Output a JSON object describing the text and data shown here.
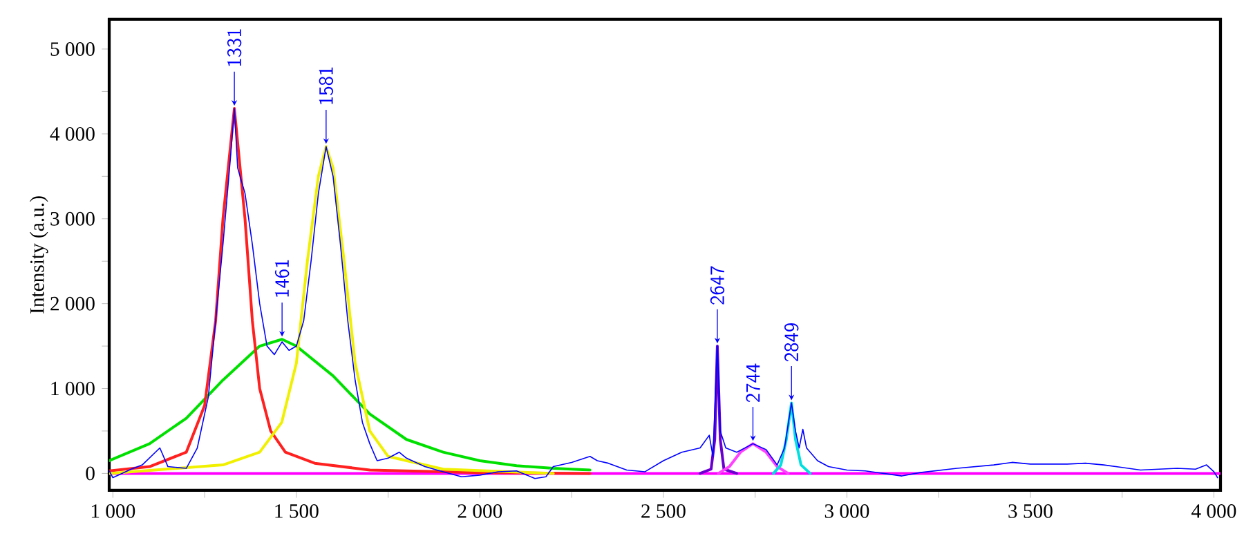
{
  "chart_data": {
    "type": "line",
    "ylabel": "Intensity (a.u.)",
    "xlim": [
      990,
      4018
    ],
    "ylim": [
      -200,
      5350
    ],
    "xticks": [
      {
        "value": 1000,
        "label": "1 000"
      },
      {
        "value": 1250,
        "label": null
      },
      {
        "value": 1500,
        "label": "1 500"
      },
      {
        "value": 1750,
        "label": null
      },
      {
        "value": 2000,
        "label": "2 000"
      },
      {
        "value": 2250,
        "label": null
      },
      {
        "value": 2500,
        "label": "2 500"
      },
      {
        "value": 2750,
        "label": null
      },
      {
        "value": 3000,
        "label": "3 000"
      },
      {
        "value": 3250,
        "label": null
      },
      {
        "value": 3500,
        "label": "3 500"
      },
      {
        "value": 3750,
        "label": null
      },
      {
        "value": 4000,
        "label": "4 000"
      }
    ],
    "yticks": [
      0,
      {
        "value": 500,
        "label": null
      },
      {
        "value": 1000,
        "label": "1 000"
      },
      {
        "value": 1500,
        "label": null
      },
      {
        "value": 2000,
        "label": "2 000"
      },
      {
        "value": 2500,
        "label": null
      },
      {
        "value": 3000,
        "label": "3 000"
      },
      {
        "value": 3500,
        "label": null
      },
      {
        "value": 4000,
        "label": "4 000"
      },
      {
        "value": 4500,
        "label": null
      },
      {
        "value": 5000,
        "label": "5 000"
      }
    ],
    "grid": false,
    "marker": "none",
    "line_style": "solid",
    "series": [
      {
        "color": "#ff00ff",
        "x": [
          990,
          4018
        ],
        "values": [
          0,
          0
        ]
      },
      {
        "color": "#00e000",
        "x": [
          990,
          1100,
          1200,
          1300,
          1400,
          1461,
          1500,
          1600,
          1700,
          1800,
          1900,
          2000,
          2100,
          2200,
          2300
        ],
        "values": [
          150,
          350,
          650,
          1100,
          1500,
          1580,
          1500,
          1150,
          700,
          400,
          250,
          150,
          90,
          60,
          40
        ]
      },
      {
        "color": "#ff2020",
        "x": [
          990,
          1100,
          1200,
          1250,
          1280,
          1300,
          1331,
          1360,
          1380,
          1400,
          1430,
          1470,
          1550,
          1700,
          2000,
          2300
        ],
        "values": [
          30,
          80,
          250,
          800,
          1800,
          3000,
          4300,
          3000,
          1800,
          1000,
          500,
          250,
          120,
          40,
          10,
          0
        ]
      },
      {
        "color": "#f0f000",
        "x": [
          990,
          1300,
          1400,
          1460,
          1500,
          1530,
          1560,
          1581,
          1600,
          1630,
          1660,
          1700,
          1750,
          1900,
          2200
        ],
        "values": [
          0,
          100,
          250,
          600,
          1300,
          2500,
          3500,
          3850,
          3600,
          2500,
          1300,
          500,
          200,
          50,
          0
        ]
      },
      {
        "color": "#6a00d0",
        "x": [
          2600,
          2630,
          2640,
          2647,
          2655,
          2665,
          2700
        ],
        "values": [
          0,
          50,
          400,
          1500,
          400,
          50,
          0
        ]
      },
      {
        "color": "#ff40ff",
        "x": [
          2650,
          2680,
          2710,
          2744,
          2780,
          2810,
          2840
        ],
        "values": [
          0,
          80,
          250,
          350,
          250,
          80,
          0
        ]
      },
      {
        "color": "#00e0e0",
        "x": [
          2800,
          2820,
          2835,
          2849,
          2860,
          2875,
          2900
        ],
        "values": [
          0,
          100,
          400,
          830,
          400,
          100,
          0
        ]
      },
      {
        "color": "#0000ff",
        "x": [
          990,
          1000,
          1050,
          1080,
          1128,
          1150,
          1200,
          1230,
          1260,
          1280,
          1300,
          1320,
          1331,
          1340,
          1360,
          1380,
          1400,
          1420,
          1440,
          1461,
          1480,
          1500,
          1520,
          1540,
          1560,
          1581,
          1600,
          1620,
          1640,
          1660,
          1680,
          1700,
          1720,
          1750,
          1780,
          1800,
          1850,
          1900,
          1950,
          2000,
          2050,
          2100,
          2150,
          2180,
          2200,
          2250,
          2300,
          2320,
          2350,
          2400,
          2450,
          2500,
          2550,
          2600,
          2625,
          2635,
          2647,
          2655,
          2670,
          2700,
          2744,
          2780,
          2810,
          2830,
          2849,
          2860,
          2870,
          2880,
          2890,
          2920,
          2950,
          3000,
          3050,
          3100,
          3150,
          3200,
          3300,
          3400,
          3450,
          3500,
          3600,
          3650,
          3700,
          3750,
          3800,
          3900,
          3950,
          3980,
          4000,
          4010
        ],
        "values": [
          30,
          -50,
          50,
          100,
          300,
          80,
          60,
          300,
          900,
          1800,
          2700,
          3700,
          4300,
          3600,
          3300,
          2700,
          2000,
          1500,
          1400,
          1550,
          1450,
          1500,
          1800,
          2500,
          3300,
          3850,
          3500,
          2700,
          1800,
          1100,
          600,
          350,
          150,
          180,
          250,
          180,
          80,
          20,
          -40,
          -20,
          20,
          30,
          -60,
          -40,
          80,
          130,
          200,
          150,
          120,
          40,
          20,
          150,
          250,
          300,
          450,
          200,
          1500,
          500,
          300,
          250,
          350,
          280,
          100,
          300,
          830,
          500,
          300,
          520,
          300,
          150,
          80,
          40,
          30,
          0,
          -30,
          10,
          60,
          100,
          130,
          110,
          110,
          120,
          100,
          70,
          40,
          60,
          50,
          100,
          20,
          -50
        ]
      }
    ],
    "annotations": [
      {
        "text": "1331",
        "x": 1331,
        "y": 4300
      },
      {
        "text": "1461",
        "x": 1461,
        "y": 1580
      },
      {
        "text": "1581",
        "x": 1581,
        "y": 3850
      },
      {
        "text": "2647",
        "x": 2647,
        "y": 1500
      },
      {
        "text": "2744",
        "x": 2744,
        "y": 350
      },
      {
        "text": "2849",
        "x": 2849,
        "y": 830
      }
    ]
  }
}
